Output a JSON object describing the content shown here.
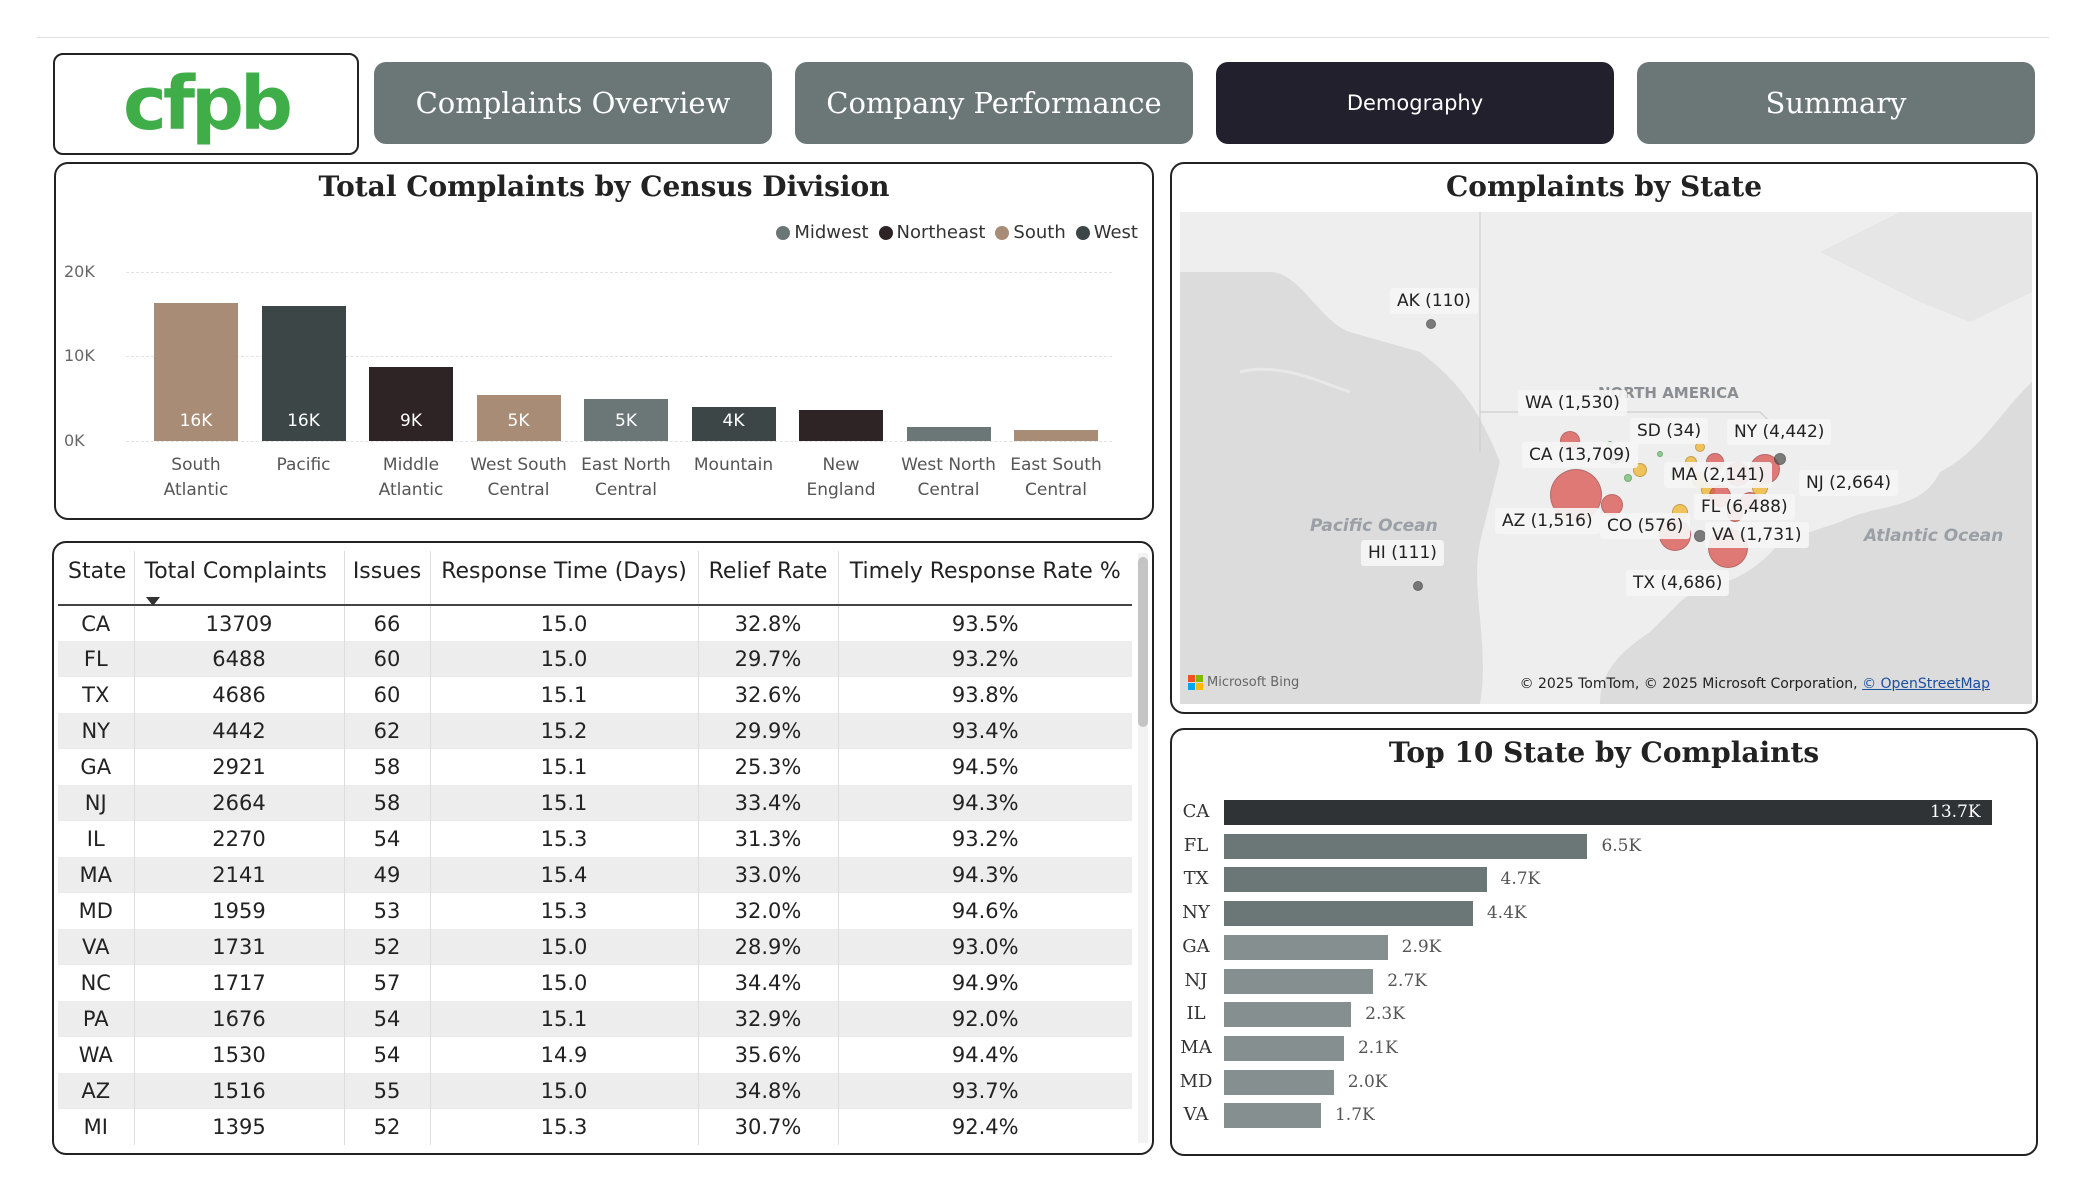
{
  "logo": {
    "text": "cfpb"
  },
  "nav": [
    {
      "label": "Complaints Overview",
      "active": false
    },
    {
      "label": "Company Performance",
      "active": false
    },
    {
      "label": "Demography",
      "active": true
    },
    {
      "label": "Summary",
      "active": false
    }
  ],
  "division_chart": {
    "title": "Total Complaints by Census Division",
    "legend": [
      {
        "name": "Midwest",
        "color": "#6b7677"
      },
      {
        "name": "Northeast",
        "color": "#2e2426"
      },
      {
        "name": "South",
        "color": "#a88c76"
      },
      {
        "name": "West",
        "color": "#3d4647"
      }
    ],
    "y_ticks": [
      "20K",
      "10K",
      "0K"
    ]
  },
  "chart_data": [
    {
      "type": "bar",
      "title": "Total Complaints by Census Division",
      "categories": [
        "South Atlantic",
        "Pacific",
        "Middle Atlantic",
        "West South Central",
        "East North Central",
        "Mountain",
        "New England",
        "West North Central",
        "East South Central"
      ],
      "values": [
        16300,
        16000,
        8700,
        5500,
        5000,
        4000,
        3700,
        1600,
        1300
      ],
      "data_labels": [
        "16K",
        "16K",
        "9K",
        "5K",
        "5K",
        "4K",
        "",
        "",
        ""
      ],
      "regions": [
        "South",
        "West",
        "Northeast",
        "South",
        "Midwest",
        "West",
        "Northeast",
        "Midwest",
        "South"
      ],
      "ylim": [
        0,
        20000
      ],
      "legend_position": "top-right",
      "grid": true
    },
    {
      "type": "bar",
      "orientation": "horizontal",
      "title": "Top 10 State by Complaints",
      "categories": [
        "CA",
        "FL",
        "TX",
        "NY",
        "GA",
        "NJ",
        "IL",
        "MA",
        "MD",
        "VA"
      ],
      "values": [
        13709,
        6488,
        4686,
        4442,
        2921,
        2664,
        2270,
        2141,
        1959,
        1731
      ],
      "data_labels": [
        "13.7K",
        "6.5K",
        "4.7K",
        "4.4K",
        "2.9K",
        "2.7K",
        "2.3K",
        "2.1K",
        "2.0K",
        "1.7K"
      ]
    }
  ],
  "table": {
    "headers": [
      "State",
      "Total Complaints",
      "Issues",
      "Response Time (Days)",
      "Relief Rate",
      "Timely Response Rate %"
    ],
    "rows": [
      [
        "CA",
        "13709",
        "66",
        "15.0",
        "32.8%",
        "93.5%"
      ],
      [
        "FL",
        "6488",
        "60",
        "15.0",
        "29.7%",
        "93.2%"
      ],
      [
        "TX",
        "4686",
        "60",
        "15.1",
        "32.6%",
        "93.8%"
      ],
      [
        "NY",
        "4442",
        "62",
        "15.2",
        "29.9%",
        "93.4%"
      ],
      [
        "GA",
        "2921",
        "58",
        "15.1",
        "25.3%",
        "94.5%"
      ],
      [
        "NJ",
        "2664",
        "58",
        "15.1",
        "33.4%",
        "94.3%"
      ],
      [
        "IL",
        "2270",
        "54",
        "15.3",
        "31.3%",
        "93.2%"
      ],
      [
        "MA",
        "2141",
        "49",
        "15.4",
        "33.0%",
        "94.3%"
      ],
      [
        "MD",
        "1959",
        "53",
        "15.3",
        "32.0%",
        "94.6%"
      ],
      [
        "VA",
        "1731",
        "52",
        "15.0",
        "28.9%",
        "93.0%"
      ],
      [
        "NC",
        "1717",
        "57",
        "15.0",
        "34.4%",
        "94.9%"
      ],
      [
        "PA",
        "1676",
        "54",
        "15.1",
        "32.9%",
        "92.0%"
      ],
      [
        "WA",
        "1530",
        "54",
        "14.9",
        "35.6%",
        "94.4%"
      ],
      [
        "AZ",
        "1516",
        "55",
        "15.0",
        "34.8%",
        "93.7%"
      ],
      [
        "MI",
        "1395",
        "52",
        "15.3",
        "30.7%",
        "92.4%"
      ]
    ]
  },
  "map": {
    "title": "Complaints by State",
    "labels": [
      "AK (110)",
      "WA (1,530)",
      "SD (34)",
      "NY (4,442)",
      "CA (13,709)",
      "MA (2,141)",
      "NJ (2,664)",
      "FL (6,488)",
      "AZ (1,516)",
      "CO (576)",
      "VA (1,731)",
      "HI (111)",
      "TX (4,686)"
    ],
    "region_label": "NORTH AMERICA",
    "oceans": [
      "Pacific Ocean",
      "Atlantic Ocean"
    ],
    "bing": "Microsoft Bing",
    "attribution": "© 2025 TomTom, © 2025 Microsoft Corporation,",
    "attribution_link": "© OpenStreetMap"
  },
  "top10": {
    "title": "Top 10 State by Complaints"
  }
}
